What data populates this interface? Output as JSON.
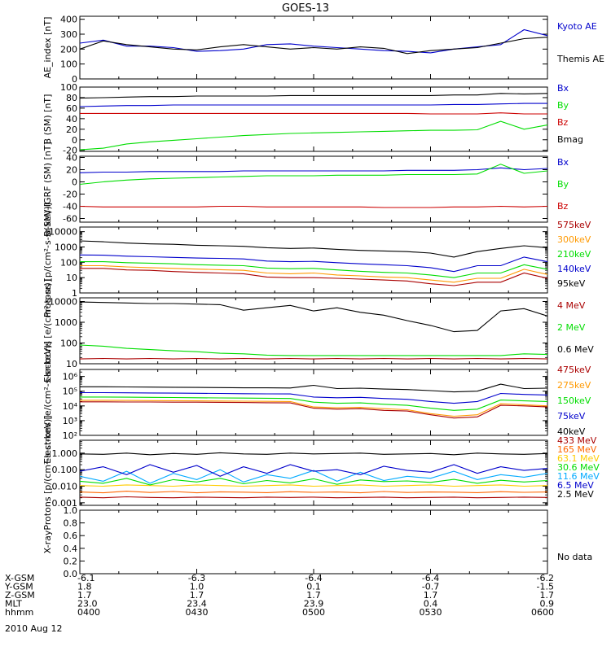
{
  "title": "GOES-13",
  "date_label": "2010 Aug 12",
  "ephemeris": {
    "rows": [
      {
        "name": "X-GSM",
        "values": [
          "-6.1",
          "-6.3",
          "-6.4",
          "-6.4",
          "-6.2"
        ]
      },
      {
        "name": "Y-GSM",
        "values": [
          "1.8",
          "1.0",
          "0.1",
          "-0.7",
          "-1.5"
        ]
      },
      {
        "name": "Z-GSM",
        "values": [
          "1.7",
          "1.7",
          "1.7",
          "1.7",
          "1.7"
        ]
      },
      {
        "name": "MLT",
        "values": [
          "23.0",
          "23.4",
          "23.9",
          "0.4",
          "0.9"
        ]
      },
      {
        "name": "hhmm",
        "values": [
          "0400",
          "0430",
          "0500",
          "0530",
          "0600"
        ]
      }
    ]
  },
  "chart_data": [
    {
      "type": "line",
      "ylabel": "AE_index [nT]",
      "scale": "linear",
      "ylim": [
        0,
        420
      ],
      "yticks": [
        "0",
        "100",
        "200",
        "300",
        "400"
      ],
      "ytick_values": [
        0,
        100,
        200,
        300,
        400
      ],
      "x_hours": [
        4.0,
        4.1,
        4.2,
        4.3,
        4.4,
        4.5,
        4.6,
        4.7,
        4.8,
        4.9,
        5.0,
        5.1,
        5.2,
        5.3,
        5.4,
        5.5,
        5.6,
        5.7,
        5.8,
        5.9,
        6.0
      ],
      "series": [
        {
          "name": "Kyoto AE",
          "color": "#0000cc",
          "values": [
            240,
            260,
            220,
            220,
            210,
            185,
            190,
            200,
            230,
            235,
            220,
            210,
            200,
            190,
            185,
            175,
            200,
            215,
            230,
            330,
            290
          ]
        },
        {
          "name": "Themis AE",
          "color": "#000000",
          "values": [
            200,
            255,
            230,
            215,
            200,
            195,
            215,
            230,
            215,
            200,
            210,
            200,
            215,
            205,
            170,
            190,
            200,
            210,
            240,
            270,
            280
          ]
        }
      ]
    },
    {
      "type": "line",
      "ylabel": "B (SM) [nT]",
      "scale": "linear",
      "ylim": [
        -22,
        100
      ],
      "yticks": [
        "-20",
        "0",
        "20",
        "40",
        "60",
        "80",
        "100"
      ],
      "ytick_values": [
        -20,
        0,
        20,
        40,
        60,
        80,
        100
      ],
      "x_hours": [
        4.0,
        4.1,
        4.2,
        4.3,
        4.4,
        4.5,
        4.6,
        4.7,
        4.8,
        4.9,
        5.0,
        5.1,
        5.2,
        5.3,
        5.4,
        5.5,
        5.6,
        5.7,
        5.8,
        5.9,
        6.0
      ],
      "series": [
        {
          "name": "Bx",
          "color": "#0000cc",
          "values": [
            63,
            64,
            65,
            65,
            66,
            66,
            66,
            66,
            66,
            66,
            66,
            66,
            66,
            66,
            66,
            66,
            67,
            67,
            68,
            69,
            69
          ]
        },
        {
          "name": "By",
          "color": "#00dd00",
          "values": [
            -19,
            -16,
            -8,
            -4,
            -1,
            2,
            5,
            8,
            10,
            12,
            13,
            14,
            15,
            16,
            17,
            18,
            18,
            19,
            35,
            20,
            28
          ]
        },
        {
          "name": "Bz",
          "color": "#cc0000",
          "values": [
            50,
            50,
            50,
            50,
            50,
            50,
            50,
            50,
            50,
            50,
            50,
            50,
            50,
            50,
            50,
            49,
            49,
            49,
            51,
            49,
            49
          ]
        },
        {
          "name": "Bmag",
          "color": "#000000",
          "values": [
            79,
            80,
            81,
            82,
            82,
            83,
            83,
            83,
            83,
            84,
            84,
            84,
            84,
            84,
            84,
            84,
            85,
            85,
            88,
            87,
            88
          ]
        }
      ]
    },
    {
      "type": "line",
      "ylabel": "B(SM)-IGRF (SM) [nT]",
      "scale": "linear",
      "ylim": [
        -66,
        42
      ],
      "yticks": [
        "-60",
        "-40",
        "-20",
        "0",
        "20",
        "40"
      ],
      "ytick_values": [
        -60,
        -40,
        -20,
        0,
        20,
        40
      ],
      "x_hours": [
        4.0,
        4.1,
        4.2,
        4.3,
        4.4,
        4.5,
        4.6,
        4.7,
        4.8,
        4.9,
        5.0,
        5.1,
        5.2,
        5.3,
        5.4,
        5.5,
        5.6,
        5.7,
        5.8,
        5.9,
        6.0
      ],
      "series": [
        {
          "name": "Bx",
          "color": "#0000cc",
          "values": [
            15,
            16,
            16,
            17,
            17,
            17,
            17,
            18,
            18,
            18,
            18,
            18,
            18,
            18,
            19,
            19,
            19,
            20,
            23,
            20,
            22
          ]
        },
        {
          "name": "By",
          "color": "#00dd00",
          "values": [
            -4,
            0,
            3,
            5,
            6,
            7,
            8,
            9,
            10,
            10,
            10,
            11,
            11,
            11,
            12,
            12,
            12,
            13,
            29,
            14,
            18
          ]
        },
        {
          "name": "Bz",
          "color": "#cc0000",
          "values": [
            -40,
            -41,
            -41,
            -41,
            -41,
            -41,
            -40,
            -40,
            -41,
            -41,
            -41,
            -41,
            -41,
            -42,
            -42,
            -42,
            -41,
            -41,
            -40,
            -41,
            -40
          ]
        }
      ]
    },
    {
      "type": "line",
      "ylabel": "Protons [p/(cm²-s-sr-keV)]",
      "scale": "log",
      "ylim": [
        1,
        20000
      ],
      "yticks": [
        "1",
        "10",
        "100",
        "1000",
        "10000"
      ],
      "ytick_values": [
        1,
        10,
        100,
        1000,
        10000
      ],
      "x_hours": [
        4.0,
        4.1,
        4.2,
        4.3,
        4.4,
        4.5,
        4.6,
        4.7,
        4.8,
        4.9,
        5.0,
        5.1,
        5.2,
        5.3,
        5.4,
        5.5,
        5.6,
        5.7,
        5.8,
        5.9,
        6.0
      ],
      "series": [
        {
          "name": "575keV",
          "color": "#aa0000",
          "values": [
            40,
            40,
            32,
            30,
            25,
            22,
            20,
            18,
            11,
            10,
            10,
            9,
            8,
            7,
            6,
            4,
            3,
            5,
            5,
            20,
            9
          ]
        },
        {
          "name": "300keV",
          "color": "#ff9900",
          "values": [
            60,
            60,
            50,
            45,
            40,
            36,
            33,
            30,
            20,
            18,
            20,
            15,
            13,
            11,
            10,
            7,
            5,
            9,
            9,
            35,
            16
          ]
        },
        {
          "name": "210keV",
          "color": "#00dd00",
          "values": [
            110,
            110,
            95,
            88,
            80,
            70,
            65,
            60,
            42,
            38,
            40,
            32,
            26,
            22,
            20,
            15,
            10,
            20,
            20,
            70,
            35
          ]
        },
        {
          "name": "140keV",
          "color": "#0000cc",
          "values": [
            300,
            290,
            250,
            230,
            210,
            190,
            180,
            165,
            120,
            110,
            115,
            95,
            80,
            70,
            60,
            45,
            25,
            60,
            60,
            220,
            110
          ]
        },
        {
          "name": "95keV",
          "color": "#000000",
          "values": [
            2500,
            2200,
            1800,
            1600,
            1500,
            1300,
            1200,
            1100,
            900,
            800,
            850,
            700,
            600,
            550,
            500,
            400,
            220,
            500,
            800,
            1200,
            900
          ]
        }
      ]
    },
    {
      "type": "line",
      "ylabel": "Electrons [e/(cm²-s-sr)]",
      "scale": "log",
      "ylim": [
        10,
        15000
      ],
      "yticks": [
        "10",
        "100",
        "1000",
        "10000"
      ],
      "ytick_values": [
        10,
        100,
        1000,
        10000
      ],
      "x_hours": [
        4.0,
        4.1,
        4.2,
        4.3,
        4.4,
        4.5,
        4.6,
        4.7,
        4.8,
        4.9,
        5.0,
        5.1,
        5.2,
        5.3,
        5.4,
        5.5,
        5.6,
        5.7,
        5.8,
        5.9,
        6.0
      ],
      "series": [
        {
          "name": "4 MeV",
          "color": "#aa0000",
          "values": [
            17,
            18,
            17,
            18,
            17,
            18,
            17,
            18,
            17,
            18,
            17,
            18,
            17,
            18,
            17,
            18,
            17,
            18,
            17,
            18,
            17
          ]
        },
        {
          "name": "2 MeV",
          "color": "#00dd00",
          "values": [
            80,
            70,
            55,
            48,
            42,
            38,
            32,
            30,
            26,
            25,
            25,
            25,
            25,
            25,
            25,
            25,
            25,
            25,
            25,
            30,
            28
          ]
        },
        {
          "name": "0.6 MeV",
          "color": "#000000",
          "values": [
            9500,
            9000,
            8500,
            8000,
            8000,
            7500,
            7000,
            3800,
            5000,
            6500,
            3500,
            5000,
            3000,
            2200,
            1200,
            700,
            350,
            400,
            3500,
            4500,
            2000
          ]
        }
      ]
    },
    {
      "type": "line",
      "ylabel": "Electrons [e/(cm²-s-sr-keV)]",
      "scale": "log",
      "ylim": [
        100,
        3000000
      ],
      "yticks": [
        "10²",
        "10³",
        "10⁴",
        "10⁵",
        "10⁶"
      ],
      "ytick_values": [
        100,
        1000,
        10000,
        100000,
        1000000
      ],
      "x_hours": [
        4.0,
        4.1,
        4.2,
        4.3,
        4.4,
        4.5,
        4.6,
        4.7,
        4.8,
        4.9,
        5.0,
        5.1,
        5.2,
        5.3,
        5.4,
        5.5,
        5.6,
        5.7,
        5.8,
        5.9,
        6.0
      ],
      "series": [
        {
          "name": "475keV",
          "color": "#aa0000",
          "values": [
            19000,
            19000,
            18500,
            18500,
            18000,
            18000,
            17500,
            17000,
            16500,
            16000,
            7000,
            6000,
            6500,
            5000,
            4500,
            2500,
            1500,
            1800,
            11000,
            10000,
            8500
          ]
        },
        {
          "name": "275keV",
          "color": "#ff9900",
          "values": [
            24000,
            24000,
            23500,
            23000,
            22500,
            22000,
            21500,
            21000,
            20500,
            20000,
            8500,
            7500,
            8000,
            6500,
            5500,
            3000,
            2000,
            2500,
            14000,
            12000,
            10000
          ]
        },
        {
          "name": "150keV",
          "color": "#00dd00",
          "values": [
            40000,
            40000,
            39000,
            38000,
            37000,
            36000,
            35000,
            34000,
            33000,
            32000,
            18000,
            15000,
            16000,
            13000,
            11000,
            7000,
            5000,
            6000,
            25000,
            22000,
            20000
          ]
        },
        {
          "name": "75keV",
          "color": "#0000cc",
          "values": [
            80000,
            80000,
            78000,
            76000,
            74000,
            72000,
            70000,
            68000,
            66000,
            65000,
            40000,
            36000,
            38000,
            32000,
            28000,
            20000,
            15000,
            20000,
            70000,
            60000,
            55000
          ]
        },
        {
          "name": "40keV",
          "color": "#000000",
          "values": [
            200000,
            200000,
            195000,
            190000,
            185000,
            180000,
            175000,
            170000,
            168000,
            165000,
            250000,
            150000,
            160000,
            140000,
            130000,
            110000,
            90000,
            100000,
            300000,
            150000,
            160000
          ]
        }
      ]
    },
    {
      "type": "line",
      "ylabel": "Protons [p/(cm²-s-sr-keV)]",
      "scale": "log",
      "ylim": [
        0.0007,
        6
      ],
      "yticks": [
        "0.001",
        "0.010",
        "0.100",
        "1.000"
      ],
      "ytick_values": [
        0.001,
        0.01,
        0.1,
        1
      ],
      "x_hours": [
        4.0,
        4.1,
        4.2,
        4.3,
        4.4,
        4.5,
        4.6,
        4.7,
        4.8,
        4.9,
        5.0,
        5.1,
        5.2,
        5.3,
        5.4,
        5.5,
        5.6,
        5.7,
        5.8,
        5.9,
        6.0
      ],
      "series": [
        {
          "name": "433 MeV",
          "color": "#aa0000",
          "values": [
            0.0022,
            0.002,
            0.0023,
            0.0021,
            0.002,
            0.0022,
            0.0021,
            0.002,
            0.0022,
            0.0021,
            0.0022,
            0.002,
            0.0021,
            0.0022,
            0.002,
            0.0021,
            0.0022,
            0.002,
            0.0021,
            0.0022,
            0.0021
          ]
        },
        {
          "name": "165 MeV",
          "color": "#ff6600",
          "values": [
            0.0045,
            0.004,
            0.005,
            0.0042,
            0.0048,
            0.004,
            0.0046,
            0.0044,
            0.0041,
            0.0047,
            0.0043,
            0.0045,
            0.004,
            0.0048,
            0.0042,
            0.0045,
            0.0044,
            0.0041,
            0.0047,
            0.0043,
            0.0045
          ]
        },
        {
          "name": "63.1 MeV",
          "color": "#ffcc00",
          "values": [
            0.011,
            0.01,
            0.012,
            0.011,
            0.01,
            0.012,
            0.011,
            0.01,
            0.011,
            0.012,
            0.01,
            0.011,
            0.012,
            0.01,
            0.011,
            0.012,
            0.01,
            0.011,
            0.012,
            0.01,
            0.011
          ]
        },
        {
          "name": "30.6 MeV",
          "color": "#00dd00",
          "values": [
            0.02,
            0.015,
            0.03,
            0.012,
            0.025,
            0.018,
            0.03,
            0.014,
            0.022,
            0.016,
            0.028,
            0.013,
            0.024,
            0.019,
            0.021,
            0.017,
            0.026,
            0.015,
            0.023,
            0.018,
            0.022
          ]
        },
        {
          "name": "11.6 MeV",
          "color": "#00aaff",
          "values": [
            0.04,
            0.02,
            0.08,
            0.015,
            0.06,
            0.025,
            0.1,
            0.018,
            0.05,
            0.03,
            0.09,
            0.02,
            0.07,
            0.022,
            0.04,
            0.03,
            0.08,
            0.025,
            0.05,
            0.035,
            0.06
          ]
        },
        {
          "name": "6.5 MeV",
          "color": "#0000cc",
          "values": [
            0.08,
            0.15,
            0.05,
            0.2,
            0.07,
            0.18,
            0.04,
            0.15,
            0.06,
            0.2,
            0.08,
            0.1,
            0.05,
            0.16,
            0.09,
            0.07,
            0.2,
            0.06,
            0.15,
            0.09,
            0.12
          ]
        },
        {
          "name": "2.5 MeV",
          "color": "#000000",
          "values": [
            0.9,
            0.85,
            1.0,
            0.8,
            0.95,
            0.85,
            1.05,
            0.9,
            0.85,
            1.0,
            0.9,
            0.95,
            1.0,
            0.85,
            0.9,
            0.95,
            0.8,
            1.0,
            0.9,
            0.85,
            0.95
          ]
        }
      ]
    },
    {
      "type": "line",
      "ylabel": "X-ray",
      "scale": "linear",
      "ylim": [
        0,
        1
      ],
      "yticks": [
        "0.0",
        "0.2",
        "0.4",
        "0.6",
        "0.8",
        "1.0"
      ],
      "ytick_values": [
        0,
        0.2,
        0.4,
        0.6,
        0.8,
        1.0
      ],
      "x_hours": [],
      "series": [],
      "note": "No data"
    }
  ]
}
